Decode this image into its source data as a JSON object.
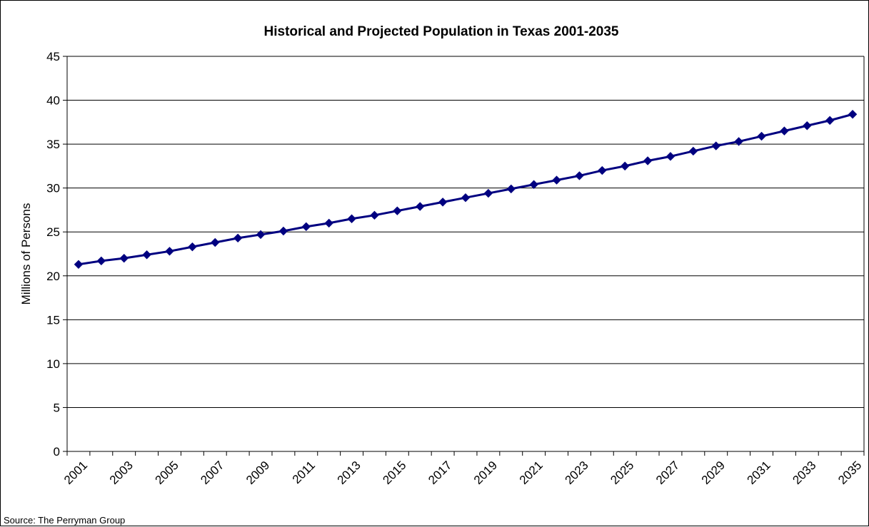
{
  "chart_data": {
    "type": "line",
    "title": "Historical and Projected Population in Texas 2001-2035",
    "xlabel": "",
    "ylabel": "Millions of Persons",
    "x": [
      2001,
      2002,
      2003,
      2004,
      2005,
      2006,
      2007,
      2008,
      2009,
      2010,
      2011,
      2012,
      2013,
      2014,
      2015,
      2016,
      2017,
      2018,
      2019,
      2020,
      2021,
      2022,
      2023,
      2024,
      2025,
      2026,
      2027,
      2028,
      2029,
      2030,
      2031,
      2032,
      2033,
      2034,
      2035
    ],
    "xtick_labels": [
      "2001",
      "2003",
      "2005",
      "2007",
      "2009",
      "2011",
      "2013",
      "2015",
      "2017",
      "2019",
      "2021",
      "2023",
      "2025",
      "2027",
      "2029",
      "2031",
      "2033",
      "2035"
    ],
    "series": [
      {
        "values": [
          21.3,
          21.7,
          22.0,
          22.4,
          22.8,
          23.3,
          23.8,
          24.3,
          24.7,
          25.1,
          25.6,
          26.0,
          26.5,
          26.9,
          27.4,
          27.9,
          28.4,
          28.9,
          29.4,
          29.9,
          30.4,
          30.9,
          31.4,
          32.0,
          32.5,
          33.1,
          33.6,
          34.2,
          34.8,
          35.3,
          35.9,
          36.5,
          37.1,
          37.7,
          38.4
        ]
      }
    ],
    "ylim": [
      0,
      45
    ],
    "yticks": [
      0,
      5,
      10,
      15,
      20,
      25,
      30,
      35,
      40,
      45
    ],
    "grid": true,
    "legend": "none",
    "line_color": "#000080",
    "marker_color": "#000080",
    "marker": "diamond"
  },
  "source": "Source: The Perryman Group"
}
